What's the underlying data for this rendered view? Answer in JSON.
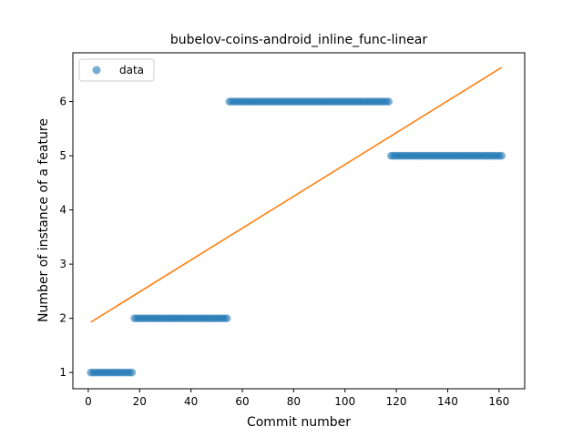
{
  "colors": {
    "data_points": "#1f77b4",
    "fit_line": "#ff7f0e",
    "axes": "#000000",
    "background": "#ffffff"
  },
  "chart_data": {
    "type": "scatter",
    "title": "bubelov-coins-android_inline_func-linear",
    "xlabel": "Commit number",
    "ylabel": "Number of instance of a feature",
    "xlim": [
      -6.0,
      170.0
    ],
    "ylim": [
      0.7,
      6.9
    ],
    "xticks": [
      0,
      20,
      40,
      60,
      80,
      100,
      120,
      140,
      160
    ],
    "yticks": [
      1,
      2,
      3,
      4,
      5,
      6
    ],
    "grid": false,
    "legend": {
      "position": "upper left",
      "entries": [
        "data"
      ]
    },
    "series": [
      {
        "name": "data",
        "kind": "points",
        "segments": [
          {
            "x_start": 1,
            "x_end": 17,
            "y": 1
          },
          {
            "x_start": 18,
            "x_end": 54,
            "y": 2
          },
          {
            "x_start": 55,
            "x_end": 117,
            "y": 6
          },
          {
            "x_start": 118,
            "x_end": 161,
            "y": 5
          }
        ]
      },
      {
        "kind": "line",
        "x": [
          1,
          161
        ],
        "y": [
          1.93,
          6.63
        ]
      }
    ]
  }
}
